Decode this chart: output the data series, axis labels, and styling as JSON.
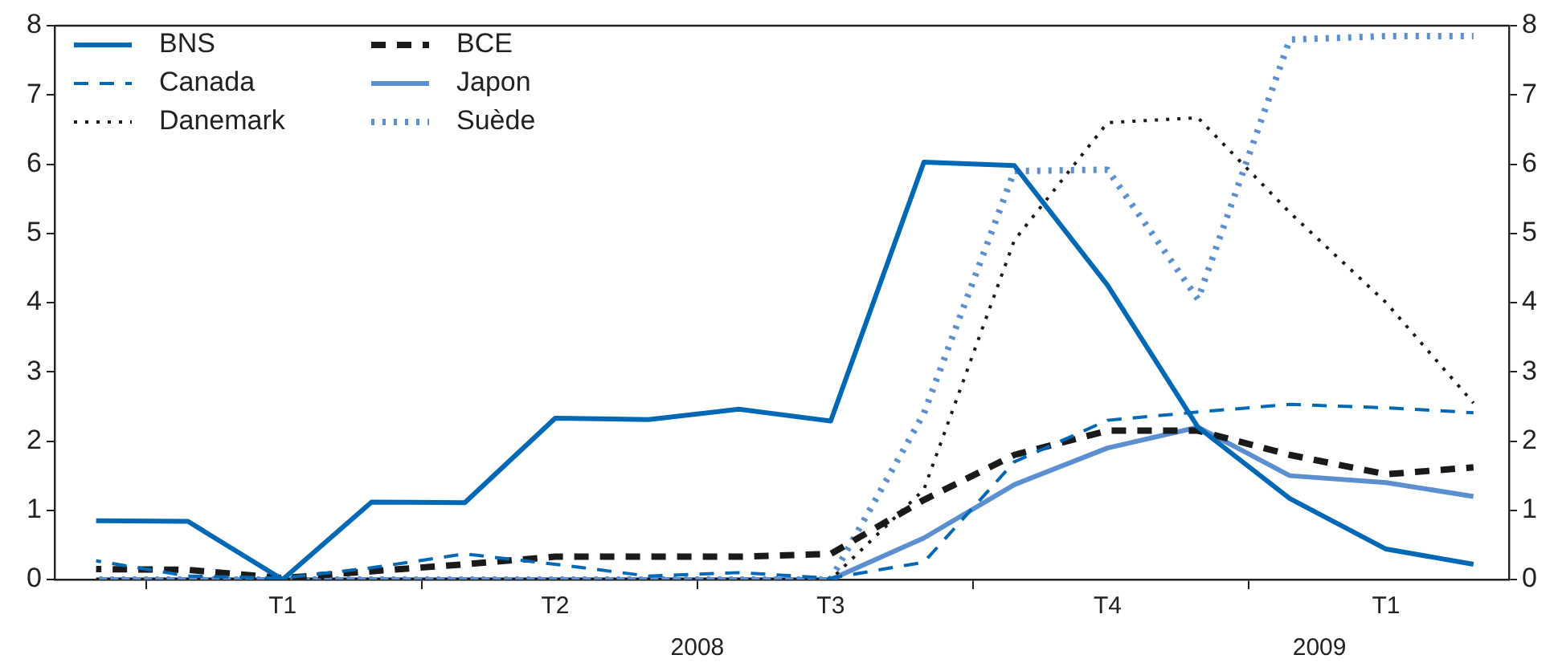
{
  "chart_data": {
    "type": "line",
    "x": [
      "2007-12-15",
      "2008-01-15",
      "2008-02-15",
      "2008-03-15",
      "2008-04-15",
      "2008-05-15",
      "2008-06-15",
      "2008-07-15",
      "2008-08-15",
      "2008-09-15",
      "2008-10-15",
      "2008-11-15",
      "2008-12-15",
      "2009-01-15",
      "2009-02-15",
      "2009-03-15"
    ],
    "series": [
      {
        "name": "BNS",
        "color": "#0068b4",
        "line_style": "solid",
        "values": [
          0.85,
          0.84,
          0,
          1.12,
          1.11,
          2.33,
          2.31,
          2.46,
          2.29,
          6.03,
          5.98,
          4.25,
          2.2,
          1.17,
          0.44,
          0.22
        ]
      },
      {
        "name": "Canada",
        "color": "#0068b4",
        "line_style": "dashed",
        "values": [
          0.27,
          0.05,
          0.02,
          0.17,
          0.37,
          0.22,
          0.05,
          0.1,
          0.02,
          0.25,
          1.7,
          2.3,
          2.42,
          2.53,
          2.48,
          2.41
        ]
      },
      {
        "name": "Danemark",
        "color": "#1a1a1a",
        "line_style": "dotted",
        "values": [
          0,
          0,
          0,
          0,
          0,
          0,
          0,
          0,
          0,
          1.3,
          4.9,
          6.6,
          6.67,
          5.3,
          4.0,
          2.55
        ]
      },
      {
        "name": "BCE",
        "color": "#1a1a1a",
        "line_style": "dashed",
        "values": [
          0.15,
          0.14,
          0.02,
          0.12,
          0.22,
          0.33,
          0.33,
          0.33,
          0.37,
          1.15,
          1.8,
          2.15,
          2.15,
          1.8,
          1.52,
          1.62
        ]
      },
      {
        "name": "Japon",
        "color": "#5b8fd0",
        "line_style": "solid",
        "values": [
          0,
          0,
          0,
          0,
          0,
          0,
          0,
          0,
          0,
          0.6,
          1.37,
          1.9,
          2.2,
          1.5,
          1.4,
          1.2
        ]
      },
      {
        "name": "Suède",
        "color": "#5b8fd0",
        "line_style": "dotted",
        "values": [
          0,
          0,
          0,
          0,
          0,
          0,
          0,
          0,
          0,
          2.4,
          5.9,
          5.92,
          4.05,
          7.8,
          7.85,
          7.85
        ]
      }
    ],
    "xlim": [
      "2007-12-01",
      "2009-03-27"
    ],
    "xticks": [
      {
        "value": "2008-01-01",
        "label": null
      },
      {
        "value": "2008-02-15",
        "label": "T1"
      },
      {
        "value": "2008-04-01",
        "label": null
      },
      {
        "value": "2008-05-15",
        "label": "T2"
      },
      {
        "value": "2008-07-01",
        "label": null
      },
      {
        "value": "2008-08-15",
        "label": "T3"
      },
      {
        "value": "2008-10-01",
        "label": null
      },
      {
        "value": "2008-11-15",
        "label": "T4"
      },
      {
        "value": "2009-01-01",
        "label": null
      },
      {
        "value": "2009-02-15",
        "label": "T1"
      }
    ],
    "x2lim": [
      "2007-12-01",
      "2009-03-27"
    ],
    "x2ticks": [
      {
        "value": "2008-07-01",
        "label": "2008"
      },
      {
        "value": "2009-01-25",
        "label": "2009"
      }
    ],
    "ylim": [
      0,
      8
    ],
    "yticks": [
      0,
      1,
      2,
      3,
      4,
      5,
      6,
      7,
      8
    ],
    "y2lim": [
      0,
      8
    ],
    "y2ticks": [
      0,
      1,
      2,
      3,
      4,
      5,
      6,
      7,
      8
    ],
    "legend": "top left",
    "grid": false,
    "marker": "none"
  }
}
